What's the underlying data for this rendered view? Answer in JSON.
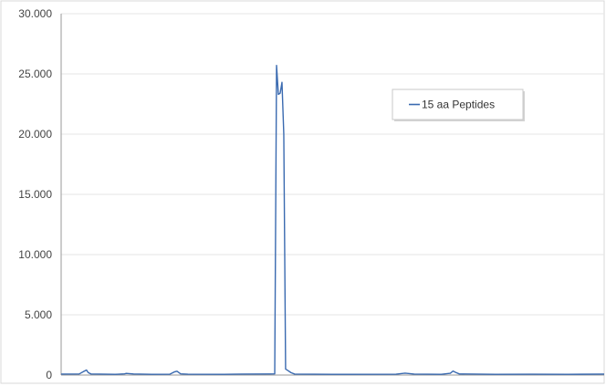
{
  "chart_data": {
    "type": "line",
    "title": "",
    "xlabel": "",
    "ylabel": "",
    "ylim": [
      0,
      30000
    ],
    "y_ticks": [
      "0",
      "5.000",
      "10.000",
      "15.000",
      "20.000",
      "25.000",
      "30.000"
    ],
    "y_tick_values": [
      0,
      5000,
      10000,
      15000,
      20000,
      25000,
      30000
    ],
    "x_ticks_shown": false,
    "grid": "horizontal",
    "legend": {
      "placement": "top-right",
      "show": true
    },
    "series": [
      {
        "name": "15 aa Peptides",
        "color": "#3a6ab0",
        "points": [
          [
            0,
            80
          ],
          [
            20,
            90
          ],
          [
            25,
            300
          ],
          [
            28,
            420
          ],
          [
            30,
            200
          ],
          [
            33,
            90
          ],
          [
            60,
            60
          ],
          [
            70,
            100
          ],
          [
            72,
            140
          ],
          [
            75,
            120
          ],
          [
            80,
            90
          ],
          [
            100,
            60
          ],
          [
            120,
            70
          ],
          [
            125,
            260
          ],
          [
            128,
            320
          ],
          [
            132,
            100
          ],
          [
            140,
            70
          ],
          [
            180,
            60
          ],
          [
            200,
            80
          ],
          [
            230,
            90
          ],
          [
            236,
            100
          ],
          [
            238,
            25700
          ],
          [
            240,
            23300
          ],
          [
            242,
            23400
          ],
          [
            244,
            24300
          ],
          [
            246,
            20000
          ],
          [
            248,
            500
          ],
          [
            250,
            400
          ],
          [
            254,
            200
          ],
          [
            258,
            80
          ],
          [
            300,
            60
          ],
          [
            370,
            70
          ],
          [
            380,
            160
          ],
          [
            385,
            120
          ],
          [
            390,
            80
          ],
          [
            420,
            60
          ],
          [
            430,
            150
          ],
          [
            433,
            330
          ],
          [
            436,
            220
          ],
          [
            440,
            90
          ],
          [
            480,
            60
          ],
          [
            520,
            70
          ],
          [
            560,
            60
          ],
          [
            600,
            80
          ]
        ]
      }
    ]
  }
}
